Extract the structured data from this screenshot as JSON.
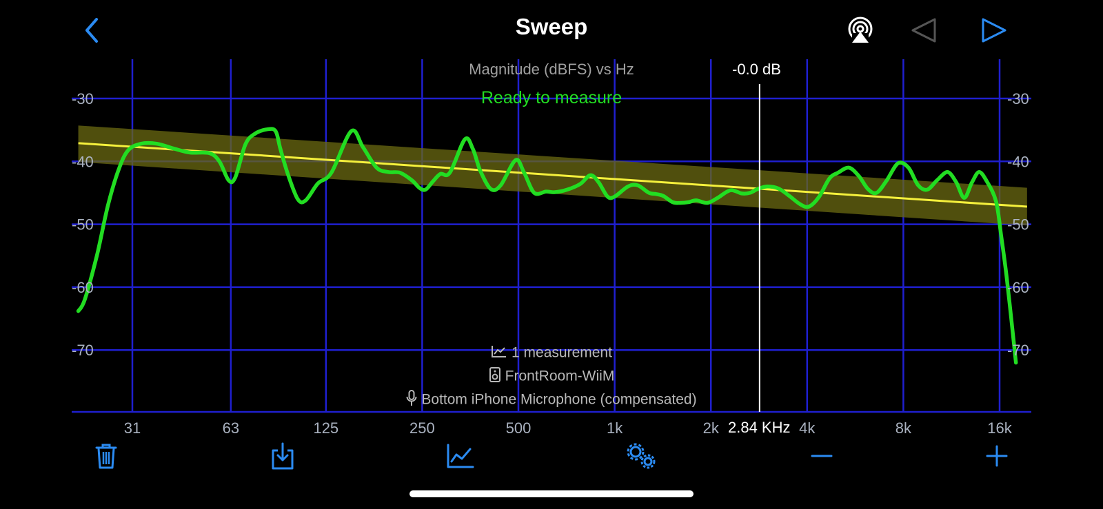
{
  "header": {
    "title": "Sweep",
    "back_icon": "chevron-left-icon",
    "airplay_icon": "airplay-icon",
    "prev_icon": "triangle-left-icon",
    "play_icon": "triangle-right-icon"
  },
  "chart_data": {
    "type": "line",
    "title": "Magnitude (dBFS) vs Hz",
    "status": "Ready to measure",
    "x_scale": "log",
    "x_ticks": [
      {
        "value": 31,
        "label": "31"
      },
      {
        "value": 63,
        "label": "63"
      },
      {
        "value": 125,
        "label": "125"
      },
      {
        "value": 250,
        "label": "250"
      },
      {
        "value": 500,
        "label": "500"
      },
      {
        "value": 1000,
        "label": "1k"
      },
      {
        "value": 2000,
        "label": "2k"
      },
      {
        "value": 4000,
        "label": "4k"
      },
      {
        "value": 8000,
        "label": "8k"
      },
      {
        "value": 16000,
        "label": "16k"
      }
    ],
    "y_ticks": [
      -30,
      -40,
      -50,
      -60,
      -70
    ],
    "ylim": [
      -80,
      -24
    ],
    "xlim": [
      21,
      19500
    ],
    "grid": true,
    "series": [
      {
        "color": "#22dd22",
        "points": [
          [
            21,
            -63.8
          ],
          [
            22,
            -62
          ],
          [
            24,
            -55
          ],
          [
            26,
            -47
          ],
          [
            28,
            -41.5
          ],
          [
            30,
            -38.3
          ],
          [
            33,
            -37.2
          ],
          [
            37,
            -37.2
          ],
          [
            42,
            -38
          ],
          [
            47,
            -38.6
          ],
          [
            54,
            -38.7
          ],
          [
            58,
            -40
          ],
          [
            62,
            -43
          ],
          [
            65,
            -42.6
          ],
          [
            70,
            -37.3
          ],
          [
            75,
            -35.6
          ],
          [
            82,
            -34.9
          ],
          [
            87,
            -35.2
          ],
          [
            90,
            -38
          ],
          [
            95,
            -42
          ],
          [
            102,
            -46
          ],
          [
            108,
            -46.2
          ],
          [
            118,
            -43.5
          ],
          [
            130,
            -41.8
          ],
          [
            150,
            -35.2
          ],
          [
            163,
            -37.7
          ],
          [
            180,
            -41
          ],
          [
            196,
            -41.7
          ],
          [
            213,
            -41.8
          ],
          [
            232,
            -43
          ],
          [
            245,
            -44.2
          ],
          [
            256,
            -44.5
          ],
          [
            270,
            -43.2
          ],
          [
            285,
            -42
          ],
          [
            305,
            -41.8
          ],
          [
            340,
            -36.5
          ],
          [
            360,
            -38
          ],
          [
            380,
            -41.5
          ],
          [
            410,
            -44.4
          ],
          [
            440,
            -43.8
          ],
          [
            490,
            -39.8
          ],
          [
            520,
            -41.7
          ],
          [
            560,
            -45
          ],
          [
            610,
            -44.8
          ],
          [
            650,
            -44.9
          ],
          [
            710,
            -44.5
          ],
          [
            780,
            -43.6
          ],
          [
            840,
            -42.2
          ],
          [
            890,
            -43.3
          ],
          [
            950,
            -45.6
          ],
          [
            1000,
            -45.6
          ],
          [
            1100,
            -44
          ],
          [
            1180,
            -43.8
          ],
          [
            1280,
            -45
          ],
          [
            1350,
            -45.2
          ],
          [
            1420,
            -45.5
          ],
          [
            1520,
            -46.5
          ],
          [
            1600,
            -46.6
          ],
          [
            1700,
            -46.5
          ],
          [
            1800,
            -46.2
          ],
          [
            1950,
            -46.6
          ],
          [
            2100,
            -45.8
          ],
          [
            2300,
            -44.6
          ],
          [
            2500,
            -45.1
          ],
          [
            2650,
            -45
          ],
          [
            2800,
            -44.4
          ],
          [
            3000,
            -44
          ],
          [
            3250,
            -44.3
          ],
          [
            3500,
            -45.4
          ],
          [
            3800,
            -46.8
          ],
          [
            4050,
            -47.2
          ],
          [
            4350,
            -45.7
          ],
          [
            4700,
            -42.7
          ],
          [
            5000,
            -41.8
          ],
          [
            5400,
            -41
          ],
          [
            5800,
            -42.3
          ],
          [
            6200,
            -44.4
          ],
          [
            6600,
            -45
          ],
          [
            7100,
            -43
          ],
          [
            7700,
            -40.3
          ],
          [
            8300,
            -41
          ],
          [
            8900,
            -43.8
          ],
          [
            9500,
            -44.5
          ],
          [
            10200,
            -43
          ],
          [
            11000,
            -41.7
          ],
          [
            11700,
            -43.3
          ],
          [
            12400,
            -45.8
          ],
          [
            13100,
            -43.4
          ],
          [
            13800,
            -41.7
          ],
          [
            14600,
            -43.2
          ],
          [
            15600,
            -46.4
          ],
          [
            16200,
            -52
          ],
          [
            16800,
            -58
          ],
          [
            17400,
            -65
          ],
          [
            18000,
            -72
          ]
        ]
      },
      {
        "color": "#f5f03c",
        "points": [
          [
            21,
            -37.1
          ],
          [
            19500,
            -47.2
          ]
        ]
      }
    ],
    "band": {
      "color": "#6b6a12",
      "upper": [
        [
          21,
          -34.3
        ],
        [
          19500,
          -44.2
        ]
      ],
      "lower": [
        [
          21,
          -40.1
        ],
        [
          19500,
          -50.2
        ]
      ]
    },
    "cursor": {
      "frequency_hz": 2840,
      "frequency_label": "2.84 KHz",
      "level_label": "-0.0 dB"
    }
  },
  "info": {
    "measurements": "1 measurement",
    "device": "FrontRoom-WiiM",
    "microphone": "Bottom iPhone Microphone (compensated)"
  },
  "toolbar": {
    "delete_icon": "trash-icon",
    "export_icon": "download-icon",
    "graph_icon": "chart-line-icon",
    "settings_icon": "gears-icon",
    "zoom_out_icon": "minus-icon",
    "zoom_in_icon": "plus-icon"
  },
  "colors": {
    "accent": "#2b8bf2",
    "grid": "#1f1fcf",
    "trace": "#22dd22",
    "target": "#f5f03c",
    "status": "#22dd22"
  }
}
